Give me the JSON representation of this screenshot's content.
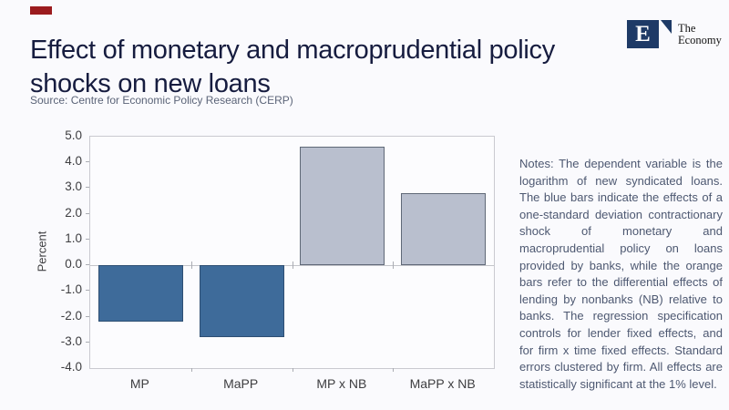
{
  "header": {
    "title": "Effect of monetary and macroprudential policy\nshocks on new loans",
    "source": "Source: Centre for Economic Policy Research (CERP)",
    "logo": {
      "letter": "E",
      "line1": "The",
      "line2": "Economy"
    }
  },
  "chart_data": {
    "type": "bar",
    "categories": [
      "MP",
      "MaPP",
      "MP x NB",
      "MaPP x NB"
    ],
    "values": [
      -2.2,
      -2.8,
      4.6,
      2.8
    ],
    "title": "",
    "xlabel": "",
    "ylabel": "Percent",
    "ylim": [
      -4.0,
      5.0
    ],
    "ytick_step": 1.0,
    "grid": "zero-line-only",
    "legend": "none",
    "colors": {
      "negative_bar_fill": "#3e6b9a",
      "negative_bar_border": "#2e4f73",
      "positive_bar_fill": "#b9bfce",
      "positive_bar_border": "#5f6877"
    }
  },
  "notes": {
    "text": "Notes:  The dependent variable is the logarithm of new syndicated loans. The blue bars indicate the effects of a one-standard deviation contractionary shock of monetary and macroprudential policy on loans provided by banks, while the orange bars refer to the differential effects of lending by nonbanks (NB) relative to banks. The regression specification controls for lender fixed effects, and for firm x time fixed effects. Standard errors clustered by firm. All effects are statistically significant at the 1% level."
  },
  "accent_color": "#9b1b1e",
  "brand_color": "#1e3a66"
}
